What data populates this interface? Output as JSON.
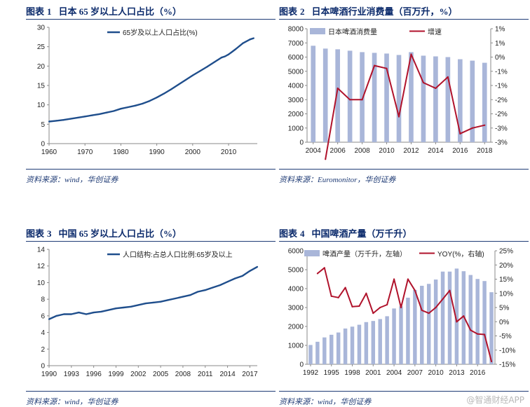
{
  "watermark": "@智通财经APP",
  "charts": [
    {
      "label": "图表",
      "num": "1",
      "title": "日本 65 岁以上人口占比（%）",
      "source": "资料来源：wind，华创证券",
      "chart_data": {
        "type": "line",
        "title": "日本 65 岁以上人口占比（%）",
        "legend_position": "top-center",
        "x": [
          1960,
          1962,
          1964,
          1966,
          1968,
          1970,
          1972,
          1974,
          1976,
          1978,
          1980,
          1982,
          1984,
          1986,
          1988,
          1990,
          1992,
          1994,
          1996,
          1998,
          2000,
          2002,
          2004,
          2006,
          2008,
          2009,
          2010,
          2011,
          2012,
          2014,
          2016,
          2017
        ],
        "series": [
          {
            "name": "65岁及以上人口占比(%)",
            "color": "#1f4e8c",
            "values": [
              5.7,
              5.9,
              6.1,
              6.4,
              6.7,
              7.0,
              7.3,
              7.6,
              8.0,
              8.4,
              9.0,
              9.4,
              9.8,
              10.3,
              11.0,
              11.9,
              12.9,
              14.0,
              15.2,
              16.4,
              17.6,
              18.7,
              19.8,
              21.0,
              22.2,
              22.5,
              23.0,
              23.7,
              24.4,
              25.9,
              26.9,
              27.2
            ]
          }
        ],
        "xlim": [
          1960,
          2018
        ],
        "ylim": [
          0,
          30
        ],
        "xticks": [
          1960,
          1970,
          1980,
          1990,
          2000,
          2010
        ],
        "yticks": [
          0,
          5,
          10,
          15,
          20,
          25,
          30
        ]
      }
    },
    {
      "label": "图表",
      "num": "2",
      "title": "日本啤酒行业消费量（百万升，%）",
      "source": "资料来源：Euromonitor，华创证券",
      "chart_data": {
        "type": "bar",
        "title": "日本啤酒行业消费量（百万升，%）",
        "legend_position": "top",
        "categories": [
          "2004",
          "2005",
          "2006",
          "2007",
          "2008",
          "2009",
          "2010",
          "2011",
          "2012",
          "2013",
          "2014",
          "2015",
          "2016",
          "2017",
          "2018"
        ],
        "series": [
          {
            "name": "日本啤酒消费量",
            "type": "bar",
            "axis": "left",
            "color": "#a9b6d9",
            "values": [
              6800,
              6600,
              6550,
              6450,
              6350,
              6300,
              6250,
              6150,
              6350,
              6100,
              6050,
              6000,
              5850,
              5750,
              5600
            ]
          },
          {
            "name": "增速",
            "type": "line",
            "axis": "right",
            "color": "#b0122b",
            "values": [
              null,
              -3.6,
              -1.1,
              -1.5,
              -1.5,
              -0.3,
              -0.4,
              -2.1,
              0.1,
              -0.9,
              -1.1,
              -0.7,
              -2.7,
              -2.5,
              -2.4
            ]
          }
        ],
        "ylim_left": [
          0,
          8000
        ],
        "ylim_right": [
          -3,
          1
        ],
        "xticks": [
          "2004",
          "2006",
          "2008",
          "2010",
          "2012",
          "2014",
          "2016",
          "2018"
        ],
        "yticks_left": [
          0,
          1000,
          2000,
          3000,
          4000,
          5000,
          6000,
          7000,
          8000
        ],
        "yticks_right": [
          "-3%",
          "-3%",
          "-2%",
          "-2%",
          "-1%",
          "-1%",
          "0%",
          "1%",
          "1%"
        ]
      }
    },
    {
      "label": "图表",
      "num": "3",
      "title": "中国 65 岁以上人口占比（%）",
      "source": "资料来源：wind，华创证券",
      "chart_data": {
        "type": "line",
        "title": "中国 65 岁以上人口占比（%）",
        "legend_position": "top-center",
        "x": [
          1990,
          1991,
          1992,
          1993,
          1994,
          1995,
          1996,
          1997,
          1998,
          1999,
          2000,
          2001,
          2002,
          2003,
          2004,
          2005,
          2006,
          2007,
          2008,
          2009,
          2010,
          2011,
          2012,
          2013,
          2014,
          2015,
          2016,
          2017,
          2018
        ],
        "series": [
          {
            "name": "人口结构:占总人口比例:65岁及以上",
            "color": "#1f4e8c",
            "values": [
              5.6,
              6.0,
              6.2,
              6.2,
              6.4,
              6.2,
              6.4,
              6.5,
              6.7,
              6.9,
              7.0,
              7.1,
              7.3,
              7.5,
              7.6,
              7.7,
              7.9,
              8.1,
              8.3,
              8.5,
              8.9,
              9.1,
              9.4,
              9.7,
              10.1,
              10.5,
              10.8,
              11.4,
              11.9
            ]
          }
        ],
        "xlim": [
          1990,
          2018
        ],
        "ylim": [
          0,
          14
        ],
        "xticks": [
          1990,
          1993,
          1996,
          1999,
          2002,
          2005,
          2008,
          2011,
          2014,
          2017
        ],
        "yticks": [
          0,
          2,
          4,
          6,
          8,
          10,
          12,
          14
        ]
      }
    },
    {
      "label": "图表",
      "num": "4",
      "title": "中国啤酒产量（万千升）",
      "source": "资料来源：wind，华创证券",
      "chart_data": {
        "type": "bar",
        "title": "中国啤酒产量（万千升）",
        "legend_position": "top",
        "categories": [
          "1992",
          "1993",
          "1994",
          "1995",
          "1996",
          "1997",
          "1998",
          "1999",
          "2000",
          "2001",
          "2002",
          "2003",
          "2004",
          "2005",
          "2006",
          "2007",
          "2008",
          "2009",
          "2010",
          "2011",
          "2012",
          "2013",
          "2014",
          "2015",
          "2016",
          "2017",
          "2018"
        ],
        "series": [
          {
            "name": "啤酒产量（万千升，左轴）",
            "type": "bar",
            "axis": "left",
            "color": "#a9b6d9",
            "values": [
              1020,
              1190,
              1420,
              1560,
              1680,
              1890,
              1990,
              2090,
              2230,
              2290,
              2390,
              2540,
              2950,
              3060,
              3520,
              3930,
              4150,
              4250,
              4480,
              4900,
              4900,
              5060,
              4920,
              4720,
              4510,
              4400,
              3810
            ]
          },
          {
            "name": "YOY(%，右轴)",
            "type": "line",
            "axis": "right",
            "color": "#b0122b",
            "values": [
              null,
              17,
              19,
              9,
              8.5,
              12,
              5.3,
              5.5,
              10,
              3,
              5,
              6,
              15,
              5,
              15,
              11,
              4,
              3,
              5,
              8,
              11,
              0,
              2,
              -3,
              -4.3,
              -4.5,
              -14
            ]
          }
        ],
        "ylim_left": [
          0,
          6000
        ],
        "ylim_right": [
          -15,
          25
        ],
        "xticks": [
          "1992",
          "1995",
          "1998",
          "2001",
          "2004",
          "2007",
          "2010",
          "2013",
          "2016"
        ],
        "yticks_left": [
          0,
          1000,
          2000,
          3000,
          4000,
          5000,
          6000
        ],
        "yticks_right": [
          "-15%",
          "-10%",
          "-5%",
          "0%",
          "5%",
          "10%",
          "15%",
          "20%",
          "25%"
        ]
      }
    }
  ]
}
